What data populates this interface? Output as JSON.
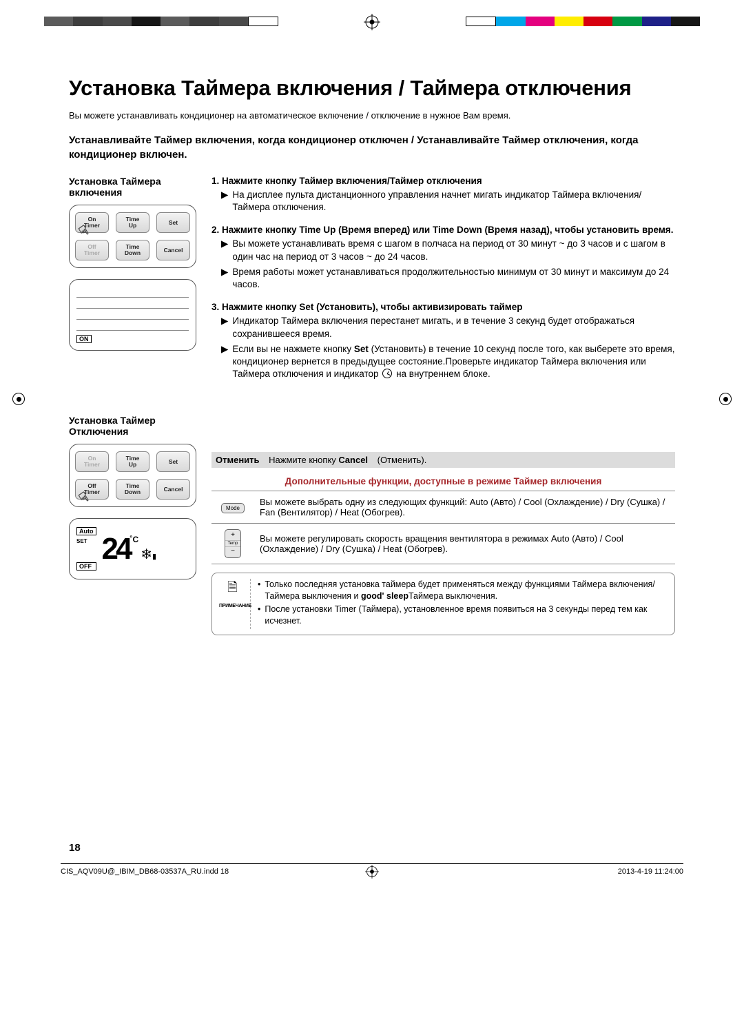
{
  "registration": {
    "left_colors": [
      "#5b5b5b",
      "#3d3d3d",
      "#4a4a4a",
      "#161616",
      "#5b5b5b",
      "#3d3d3d",
      "#4a4a4a",
      "#ffffff"
    ],
    "right_colors": [
      "#ffffff",
      "#00a6e8",
      "#e4007f",
      "#ffed00",
      "#d7000f",
      "#009944",
      "#1d2087",
      "#161616"
    ]
  },
  "title": "Установка Таймера включения / Таймера отключения",
  "intro": "Вы можете устанавливать кондиционер на автоматическое включение / отключение в нужное Вам время.",
  "lead": "Устанавливайте Таймер включения, когда кондиционер отключен / Устанавливайте Таймер отключения, когда кондиционер включен.",
  "section_on": {
    "heading": "Установка Таймера включения",
    "remote": {
      "row1": [
        {
          "label": "On\nTimer",
          "dim": false,
          "finger": true
        },
        {
          "label": "Time\nUp",
          "dim": false
        },
        {
          "label": "Set",
          "dim": false
        }
      ],
      "row2": [
        {
          "label": "Off\nTimer",
          "dim": true
        },
        {
          "label": "Time\nDown",
          "dim": false
        },
        {
          "label": "Cancel",
          "dim": false
        }
      ]
    },
    "lcd_tag": "ON"
  },
  "section_off": {
    "heading": "Установка Таймер Отключения",
    "remote": {
      "row1": [
        {
          "label": "On\nTimer",
          "dim": true
        },
        {
          "label": "Time\nUp",
          "dim": false
        },
        {
          "label": "Set",
          "dim": false
        }
      ],
      "row2": [
        {
          "label": "Off\nTimer",
          "dim": false,
          "finger": true
        },
        {
          "label": "Time\nDown",
          "dim": false
        },
        {
          "label": "Cancel",
          "dim": false
        }
      ]
    },
    "lcd": {
      "tag_top": "Auto",
      "tag_set": "SET",
      "temp": "24",
      "degree": "˚C",
      "tag_bottom": "OFF"
    }
  },
  "steps": [
    {
      "head": "1.   Нажмите кнопку Таймер включения/Таймер отключения",
      "bullets": [
        "На дисплее пульта дистанционного управления начнет мигать индикатор Таймера включения/Таймера отключения."
      ]
    },
    {
      "head": "2.   Нажмите кнопку Time Up (Время вперед) или Time Down (Время назад), чтобы установить время.",
      "bullets": [
        "Вы можете устанавливать время с шагом в полчаса на период от 30 минут ~ до 3 часов и с шагом в один час на период от 3 часов ~ до 24 часов.",
        "Время работы может устанавливаться продолжительностью минимум от 30 минут и максимум до 24 часов."
      ]
    },
    {
      "head_parts": [
        "3.   Нажмите кнопку ",
        "Set",
        "  (Установить), чтобы активизировать таймер"
      ],
      "bullets_rich": [
        {
          "pre": "Индикатор Таймера включения перестанет мигать, и в течение 3 секунд будет отображаться сохранившееся время."
        },
        {
          "pre": "Если вы не нажмете кнопку ",
          "bold": "Set",
          "mid": " (Установить) в течение 10 секунд после того, как выберете это время, кондиционер вернется в предыдущее состояние.Проверьте индикатор Таймера включения или Таймера отключения и индикатор ",
          "clock": true,
          "post": " на внутреннем блоке."
        }
      ]
    }
  ],
  "cancel": {
    "label": "Отменить",
    "text_pre": "Нажмите кнопку ",
    "bold": "Cancel",
    "text_post": " (Отменить)."
  },
  "addl": {
    "title": "Дополнительные функции, доступные в режиме Таймер включения",
    "title_color": "#a6282c",
    "rows": [
      {
        "icon": "mode",
        "text": "Вы можете выбрать одну из следующих функций: Auto (Авто) / Cool (Охлаждение) / Dry (Сушка) / Fan (Вентилятор) / Heat (Обогрев)."
      },
      {
        "icon": "temp",
        "text": "Вы можете регулировать скорость вращения вентилятора в режимах Auto (Авто) / Cool (Охлаждение) / Dry (Сушка) / Heat (Обогрев)."
      }
    ]
  },
  "notes": {
    "label": "ПРИМЕЧАНИЕ",
    "items": [
      {
        "pre": "Только последняя установка таймера будет применяться между функциями Таймера включения/Таймера выключения и ",
        "bold": "good' sleep",
        "post": "Таймера выключения."
      },
      {
        "pre": "После установки Timer (Таймера), установленное время появиться на 3 секунды перед тем как исчезнет."
      }
    ]
  },
  "page_number": "18",
  "footer": {
    "left": "CIS_AQV09U@_IBIM_DB68-03537A_RU.indd   18",
    "right": "2013-4-19   11:24:00"
  },
  "colors": {
    "text": "#000000",
    "bullet": "#000000"
  }
}
